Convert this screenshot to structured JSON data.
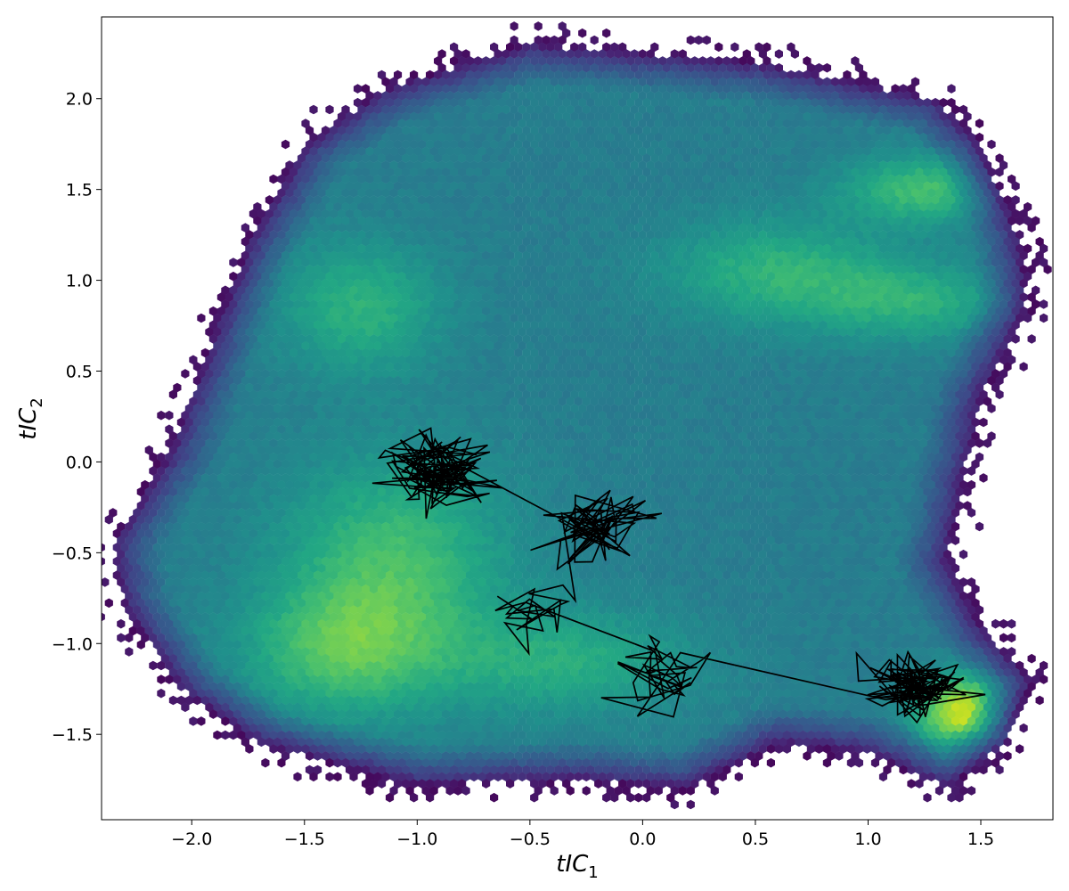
{
  "chart_data": {
    "type": "heatmap",
    "subtype": "hexbin-density-with-trajectory",
    "colormap": "viridis",
    "xlabel": {
      "base": "tIC",
      "sub": "1"
    },
    "ylabel": {
      "base": "tIC",
      "sub": "2"
    },
    "xlim": [
      -2.4,
      1.82
    ],
    "ylim": [
      -1.97,
      2.45
    ],
    "xticks": [
      -2.0,
      -1.5,
      -1.0,
      -0.5,
      0.0,
      0.5,
      1.0,
      1.5
    ],
    "xtick_labels": [
      "−2.0",
      "−1.5",
      "−1.0",
      "−0.5",
      "0.0",
      "0.5",
      "1.0",
      "1.5"
    ],
    "yticks": [
      -1.5,
      -1.0,
      -0.5,
      0.0,
      0.5,
      1.0,
      1.5,
      2.0
    ],
    "ytick_labels": [
      "−1.5",
      "−1.0",
      "−0.5",
      "0.0",
      "0.5",
      "1.0",
      "1.5",
      "2.0"
    ],
    "grid": false,
    "density_peaks": [
      {
        "x": 1.42,
        "y": -1.38,
        "amplitude": 1.0,
        "sx": 0.14,
        "sy": 0.14
      },
      {
        "x": 1.25,
        "y": 1.5,
        "amplitude": 0.55,
        "sx": 0.25,
        "sy": 0.13
      },
      {
        "x": 0.6,
        "y": 1.05,
        "amplitude": 0.45,
        "sx": 0.35,
        "sy": 0.2
      },
      {
        "x": 1.2,
        "y": 0.88,
        "amplitude": 0.4,
        "sx": 0.3,
        "sy": 0.15
      },
      {
        "x": -1.25,
        "y": 0.85,
        "amplitude": 0.45,
        "sx": 0.25,
        "sy": 0.25
      },
      {
        "x": -1.1,
        "y": -0.55,
        "amplitude": 0.55,
        "sx": 0.35,
        "sy": 0.4
      },
      {
        "x": -1.35,
        "y": -1.05,
        "amplitude": 0.5,
        "sx": 0.3,
        "sy": 0.25
      },
      {
        "x": -0.35,
        "y": -1.1,
        "amplitude": 0.4,
        "sx": 0.4,
        "sy": 0.2
      }
    ],
    "trajectory_clusters": [
      {
        "cx": -0.92,
        "cy": -0.05,
        "rx": 0.22,
        "ry": 0.2,
        "points": 110
      },
      {
        "cx": -0.22,
        "cy": -0.38,
        "rx": 0.24,
        "ry": 0.18,
        "points": 70
      },
      {
        "cx": -0.48,
        "cy": -0.85,
        "rx": 0.18,
        "ry": 0.17,
        "points": 25
      },
      {
        "cx": 0.1,
        "cy": -1.15,
        "rx": 0.2,
        "ry": 0.15,
        "points": 45
      },
      {
        "cx": 1.2,
        "cy": -1.22,
        "rx": 0.2,
        "ry": 0.14,
        "points": 110
      }
    ],
    "trajectory_color": "#000000"
  }
}
